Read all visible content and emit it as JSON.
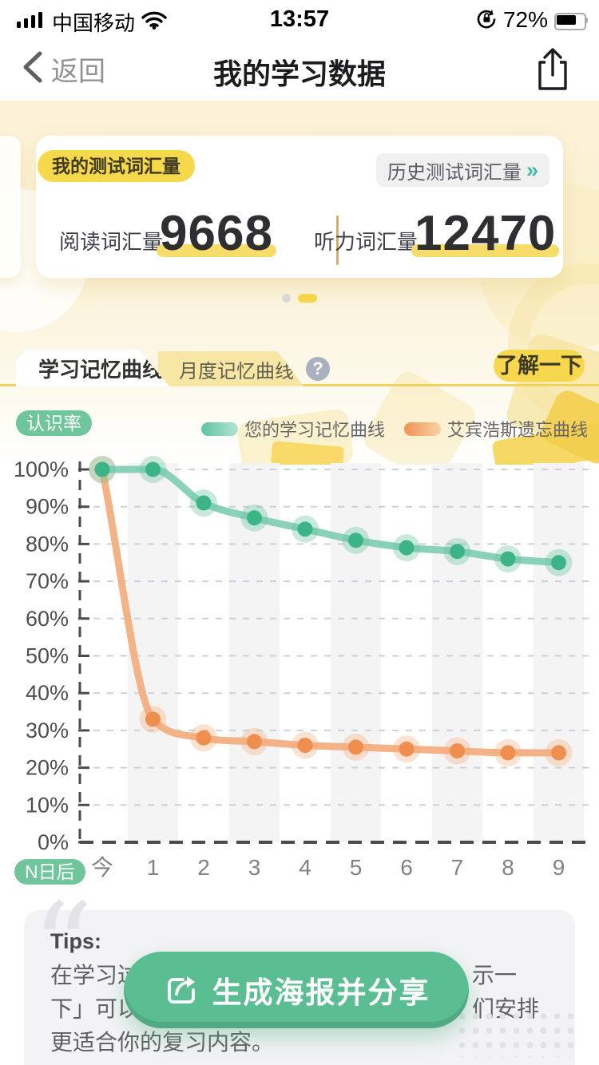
{
  "status_bar": {
    "carrier": "中国移动",
    "time": "13:57",
    "battery_percent": "72%"
  },
  "nav": {
    "back_label": "返回",
    "title": "我的学习数据"
  },
  "vocab_card": {
    "badge": "我的测试词汇量",
    "history_link": "历史测试词汇量",
    "history_chevron": "»",
    "reading_label": "阅读词汇量",
    "reading_value": "9668",
    "listening_label": "听力词汇量",
    "listening_value": "12470"
  },
  "tabs": {
    "active_label": "学习记忆曲线",
    "inactive_label": "月度记忆曲线",
    "help_glyph": "?",
    "cta_label": "了解一下"
  },
  "chart_data": {
    "type": "line",
    "title": "学习记忆曲线",
    "categories": [
      "今",
      "1",
      "2",
      "3",
      "4",
      "5",
      "6",
      "7",
      "8",
      "9"
    ],
    "series": [
      {
        "name": "您的学习记忆曲线",
        "color": "#7FCDB2",
        "point_color": "#3CB487",
        "halo": "rgba(111,197,164,0.38)",
        "values": [
          100,
          100,
          91,
          87,
          84,
          81,
          79,
          78,
          76,
          75
        ]
      },
      {
        "name": "艾宾浩斯遗忘曲线",
        "color": "#F3AC7C",
        "point_color": "#EE8F4F",
        "halo": "rgba(243,172,124,0.35)",
        "values": [
          100,
          33,
          28,
          27,
          26,
          25.5,
          25,
          24.5,
          24,
          24
        ]
      }
    ],
    "ylabel": "认识率",
    "xlabel": "N日后",
    "ylim": [
      0,
      100
    ],
    "y_tick_step": 10,
    "y_tick_suffix": "%",
    "grid": "dashed horizontal, alternating vertical bands",
    "legend_position": "top-right"
  },
  "tips": {
    "quote_mark": "“",
    "title": "Tips:",
    "line1_left": "在学习过",
    "line1_right": "示一",
    "line2_left": "下」可以",
    "line2_right": "们安排",
    "line3": "更适合你的复习内容。"
  },
  "share_button": {
    "label": "生成海报并分享"
  },
  "colors": {
    "accent_yellow": "#F6D84B",
    "teal_series": "#3CB487",
    "orange_series": "#EE8F4F",
    "green_pill": "#6FC59C",
    "share_green": "#5BBE92"
  }
}
